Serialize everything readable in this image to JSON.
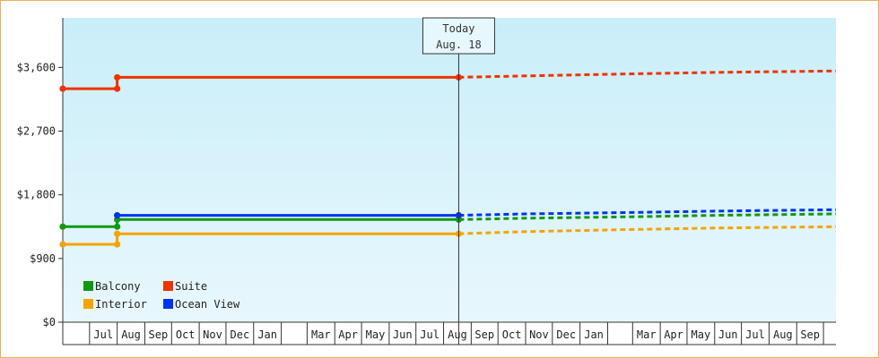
{
  "chart_data": {
    "type": "line",
    "title": "",
    "xlabel": "",
    "ylabel": "",
    "ylim": [
      0,
      4300
    ],
    "x_range": [
      "2023-06-01",
      "2025-10-15"
    ],
    "yticks": [
      0,
      900,
      1800,
      2700,
      3600
    ],
    "ytick_labels": [
      "$0",
      "$900",
      "$1,800",
      "$2,700",
      "$3,600"
    ],
    "month_ticks": [
      {
        "label": "Jul",
        "date": "2023-07-01"
      },
      {
        "label": "Aug",
        "date": "2023-08-01"
      },
      {
        "label": "Sep",
        "date": "2023-09-01"
      },
      {
        "label": "Oct",
        "date": "2023-10-01"
      },
      {
        "label": "Nov",
        "date": "2023-11-01"
      },
      {
        "label": "Dec",
        "date": "2023-12-01"
      },
      {
        "label": "Jan",
        "date": "2024-01-01"
      },
      {
        "label": "",
        "date": "2024-02-01"
      },
      {
        "label": "Mar",
        "date": "2024-03-01"
      },
      {
        "label": "Apr",
        "date": "2024-04-01"
      },
      {
        "label": "May",
        "date": "2024-05-01"
      },
      {
        "label": "Jun",
        "date": "2024-06-01"
      },
      {
        "label": "Jul",
        "date": "2024-07-01"
      },
      {
        "label": "Aug",
        "date": "2024-08-01"
      },
      {
        "label": "Sep",
        "date": "2024-09-01"
      },
      {
        "label": "Oct",
        "date": "2024-10-01"
      },
      {
        "label": "Nov",
        "date": "2024-11-01"
      },
      {
        "label": "Dec",
        "date": "2024-12-01"
      },
      {
        "label": "Jan",
        "date": "2025-01-01"
      },
      {
        "label": "",
        "date": "2025-02-01"
      },
      {
        "label": "Mar",
        "date": "2025-03-01"
      },
      {
        "label": "Apr",
        "date": "2025-04-01"
      },
      {
        "label": "May",
        "date": "2025-05-01"
      },
      {
        "label": "Jun",
        "date": "2025-06-01"
      },
      {
        "label": "Jul",
        "date": "2025-07-01"
      },
      {
        "label": "Aug",
        "date": "2025-08-01"
      },
      {
        "label": "Sep",
        "date": "2025-09-01"
      },
      {
        "label": "",
        "date": "2025-10-01"
      }
    ],
    "today": {
      "label_line1": "Today",
      "label_line2": "Aug. 18",
      "date": "2024-08-18"
    },
    "series": [
      {
        "name": "Balcony",
        "color": "#119911",
        "history": [
          {
            "x": "2023-06-01",
            "y": 1350
          },
          {
            "x": "2023-08-01",
            "y": 1350
          },
          {
            "x": "2023-08-01",
            "y": 1450
          },
          {
            "x": "2024-08-18",
            "y": 1450
          }
        ],
        "forecast": [
          {
            "x": "2024-08-18",
            "y": 1450
          },
          {
            "x": "2024-11-01",
            "y": 1470
          },
          {
            "x": "2025-03-01",
            "y": 1490
          },
          {
            "x": "2025-06-01",
            "y": 1510
          },
          {
            "x": "2025-10-15",
            "y": 1530
          }
        ]
      },
      {
        "name": "Suite",
        "color": "#ee3300",
        "history": [
          {
            "x": "2023-06-01",
            "y": 3300
          },
          {
            "x": "2023-08-01",
            "y": 3300
          },
          {
            "x": "2023-08-01",
            "y": 3460
          },
          {
            "x": "2024-08-18",
            "y": 3460
          }
        ],
        "forecast": [
          {
            "x": "2024-08-18",
            "y": 3460
          },
          {
            "x": "2024-11-01",
            "y": 3480
          },
          {
            "x": "2025-03-01",
            "y": 3510
          },
          {
            "x": "2025-06-01",
            "y": 3530
          },
          {
            "x": "2025-10-15",
            "y": 3550
          }
        ]
      },
      {
        "name": "Interior",
        "color": "#f5a300",
        "history": [
          {
            "x": "2023-06-01",
            "y": 1100
          },
          {
            "x": "2023-08-01",
            "y": 1100
          },
          {
            "x": "2023-08-01",
            "y": 1250
          },
          {
            "x": "2024-08-18",
            "y": 1250
          }
        ],
        "forecast": [
          {
            "x": "2024-08-18",
            "y": 1250
          },
          {
            "x": "2024-11-01",
            "y": 1280
          },
          {
            "x": "2025-03-01",
            "y": 1310
          },
          {
            "x": "2025-06-01",
            "y": 1330
          },
          {
            "x": "2025-10-15",
            "y": 1350
          }
        ]
      },
      {
        "name": "Ocean View",
        "color": "#0033ee",
        "history": [
          {
            "x": "2023-08-01",
            "y": 1510
          },
          {
            "x": "2024-08-18",
            "y": 1510
          }
        ],
        "forecast": [
          {
            "x": "2024-08-18",
            "y": 1510
          },
          {
            "x": "2024-11-01",
            "y": 1530
          },
          {
            "x": "2025-03-01",
            "y": 1550
          },
          {
            "x": "2025-06-01",
            "y": 1570
          },
          {
            "x": "2025-10-15",
            "y": 1590
          }
        ]
      }
    ],
    "legend": {
      "placement": "bottom-left",
      "items": [
        {
          "label": "Balcony",
          "color": "#119911"
        },
        {
          "label": "Suite",
          "color": "#ee3300"
        },
        {
          "label": "Interior",
          "color": "#f5a300"
        },
        {
          "label": "Ocean View",
          "color": "#0033ee"
        }
      ]
    },
    "grid": false,
    "background_gradient": [
      "#c9eef9",
      "#e8f7fd"
    ]
  }
}
